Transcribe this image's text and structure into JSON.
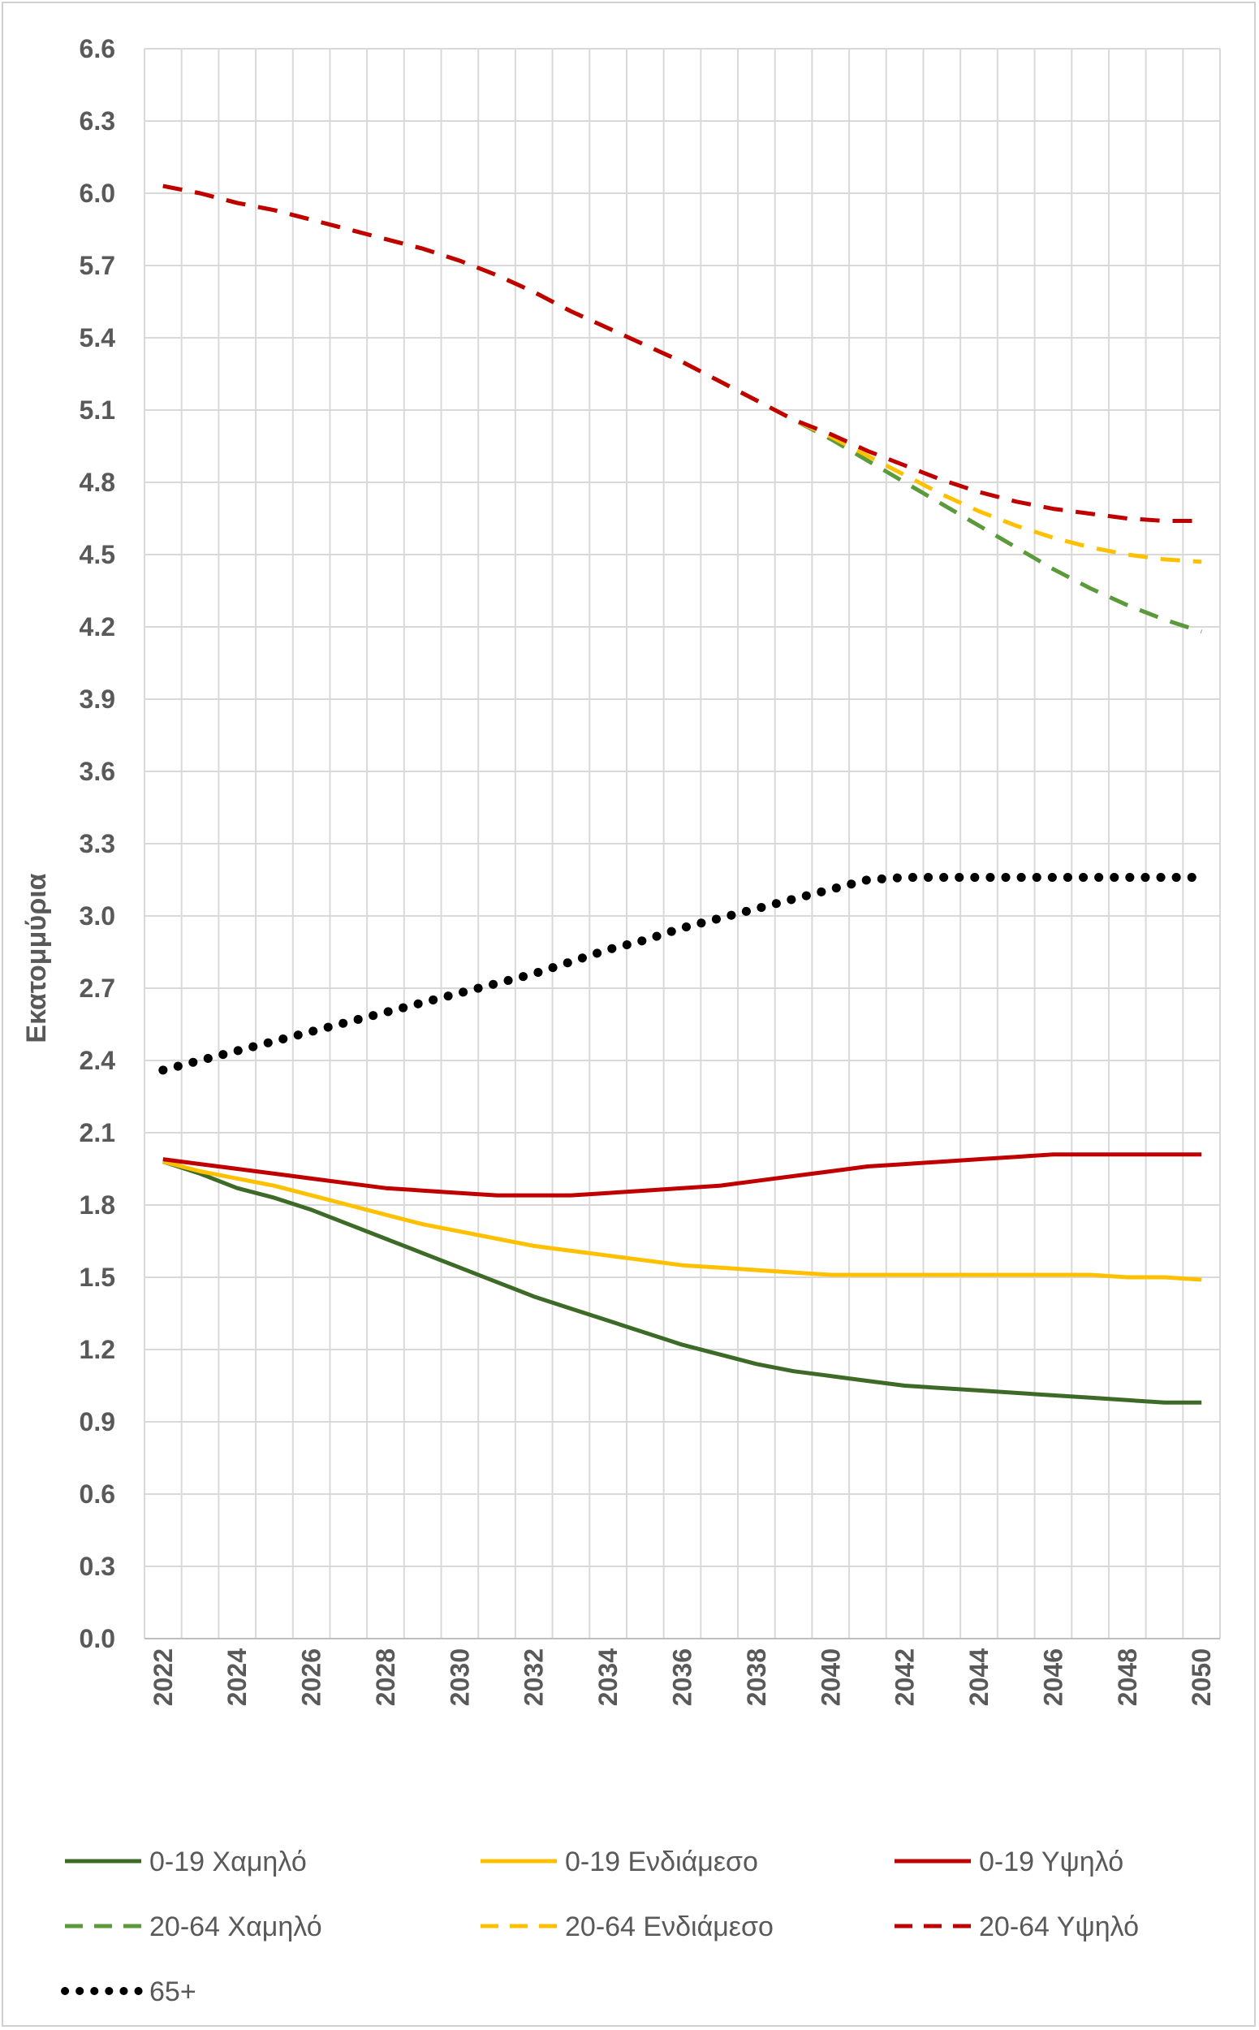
{
  "chart_data": {
    "type": "line",
    "title": "",
    "xlabel": "",
    "ylabel": "Εκατομμύρια",
    "ylim": [
      0,
      6.6
    ],
    "yticks": [
      "0.0",
      "0.3",
      "0.6",
      "0.9",
      "1.2",
      "1.5",
      "1.8",
      "2.1",
      "2.4",
      "2.7",
      "3.0",
      "3.3",
      "3.6",
      "3.9",
      "4.2",
      "4.5",
      "4.8",
      "5.1",
      "5.4",
      "5.7",
      "6.0",
      "6.3",
      "6.6"
    ],
    "x": [
      2022,
      2023,
      2024,
      2025,
      2026,
      2027,
      2028,
      2029,
      2030,
      2031,
      2032,
      2033,
      2034,
      2035,
      2036,
      2037,
      2038,
      2039,
      2040,
      2041,
      2042,
      2043,
      2044,
      2045,
      2046,
      2047,
      2048,
      2049,
      2050
    ],
    "xticks": [
      "2022",
      "2024",
      "2026",
      "2028",
      "2030",
      "2032",
      "2034",
      "2036",
      "2038",
      "2040",
      "2042",
      "2044",
      "2046",
      "2048",
      "2050"
    ],
    "grid": true,
    "legend_position": "bottom",
    "series": [
      {
        "name": "0-19 Χαμηλό",
        "color": "#3d6b27",
        "dash": "solid",
        "values": [
          1.98,
          1.93,
          1.87,
          1.83,
          1.78,
          1.72,
          1.66,
          1.6,
          1.54,
          1.48,
          1.42,
          1.37,
          1.32,
          1.27,
          1.22,
          1.18,
          1.14,
          1.11,
          1.09,
          1.07,
          1.05,
          1.04,
          1.03,
          1.02,
          1.01,
          1.0,
          0.99,
          0.98,
          0.98
        ]
      },
      {
        "name": "0-19 Ενδιάμεσο",
        "color": "#ffc000",
        "dash": "solid",
        "values": [
          1.98,
          1.94,
          1.91,
          1.88,
          1.84,
          1.8,
          1.76,
          1.72,
          1.69,
          1.66,
          1.63,
          1.61,
          1.59,
          1.57,
          1.55,
          1.54,
          1.53,
          1.52,
          1.51,
          1.51,
          1.51,
          1.51,
          1.51,
          1.51,
          1.51,
          1.51,
          1.5,
          1.5,
          1.49
        ]
      },
      {
        "name": "0-19 Υψηλό",
        "color": "#c00000",
        "dash": "solid",
        "values": [
          1.99,
          1.97,
          1.95,
          1.93,
          1.91,
          1.89,
          1.87,
          1.86,
          1.85,
          1.84,
          1.84,
          1.84,
          1.85,
          1.86,
          1.87,
          1.88,
          1.9,
          1.92,
          1.94,
          1.96,
          1.97,
          1.98,
          1.99,
          2.0,
          2.01,
          2.01,
          2.01,
          2.01,
          2.01
        ]
      },
      {
        "name": "20-64 Χαμηλό",
        "color": "#5b9a3a",
        "dash": "dashed",
        "values": [
          6.03,
          6.0,
          5.96,
          5.93,
          5.89,
          5.85,
          5.81,
          5.77,
          5.72,
          5.66,
          5.59,
          5.51,
          5.44,
          5.37,
          5.3,
          5.22,
          5.14,
          5.06,
          4.98,
          4.89,
          4.8,
          4.71,
          4.62,
          4.53,
          4.44,
          4.36,
          4.29,
          4.23,
          4.18
        ]
      },
      {
        "name": "20-64 Ενδιάμεσο",
        "color": "#ffc000",
        "dash": "dashed",
        "values": [
          6.03,
          6.0,
          5.96,
          5.93,
          5.89,
          5.85,
          5.81,
          5.77,
          5.72,
          5.66,
          5.59,
          5.51,
          5.44,
          5.37,
          5.3,
          5.22,
          5.14,
          5.06,
          4.99,
          4.91,
          4.83,
          4.75,
          4.68,
          4.62,
          4.57,
          4.53,
          4.5,
          4.48,
          4.47
        ]
      },
      {
        "name": "20-64 Υψηλό",
        "color": "#c00000",
        "dash": "dashed",
        "values": [
          6.03,
          6.0,
          5.96,
          5.93,
          5.89,
          5.85,
          5.81,
          5.77,
          5.72,
          5.66,
          5.59,
          5.51,
          5.44,
          5.37,
          5.3,
          5.22,
          5.14,
          5.06,
          5.0,
          4.93,
          4.87,
          4.81,
          4.76,
          4.72,
          4.69,
          4.67,
          4.65,
          4.64,
          4.64
        ]
      },
      {
        "name": "65+",
        "color": "#000000",
        "dash": "dotted",
        "values": [
          2.36,
          2.4,
          2.44,
          2.48,
          2.52,
          2.56,
          2.6,
          2.64,
          2.68,
          2.72,
          2.76,
          2.81,
          2.86,
          2.9,
          2.95,
          2.99,
          3.03,
          3.07,
          3.11,
          3.15,
          3.16,
          3.16,
          3.16,
          3.16,
          3.16,
          3.16,
          3.16,
          3.16,
          3.16
        ]
      }
    ]
  }
}
